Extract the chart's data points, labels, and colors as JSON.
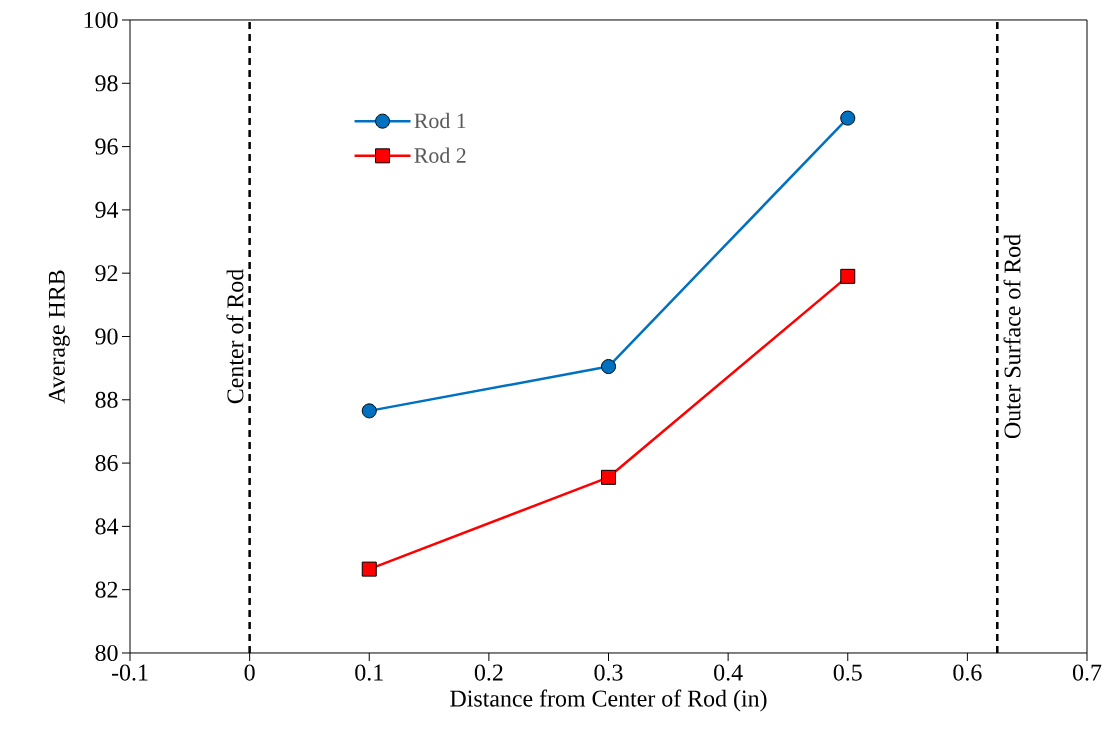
{
  "chart_data": {
    "type": "line",
    "xlabel": "Distance from Center of Rod (in)",
    "ylabel": "Average HRB",
    "x": [
      0.1,
      0.3,
      0.5
    ],
    "series": [
      {
        "name": "Rod 1",
        "color": "#0070c0",
        "marker": "circle",
        "values": [
          87.65,
          89.05,
          96.9
        ]
      },
      {
        "name": "Rod 2",
        "color": "#ff0000",
        "marker": "square",
        "values": [
          82.65,
          85.55,
          91.9
        ]
      }
    ],
    "xlim": [
      -0.1,
      0.7
    ],
    "xticks": [
      -0.1,
      0,
      0.1,
      0.2,
      0.3,
      0.4,
      0.5,
      0.6,
      0.7
    ],
    "ylim": [
      80,
      100
    ],
    "yticks": [
      80,
      82,
      84,
      86,
      88,
      90,
      92,
      94,
      96,
      98,
      100
    ],
    "ref_lines": [
      {
        "axis": "x",
        "value": 0,
        "label": "Center of Rod",
        "color": "#000000",
        "line_style": "dashed"
      },
      {
        "axis": "x",
        "value": 0.625,
        "label": "Outer Surface of Rod",
        "color": "#000000",
        "line_style": "dashed"
      }
    ],
    "grid": false,
    "legend": "top left",
    "line_style": "solid"
  }
}
